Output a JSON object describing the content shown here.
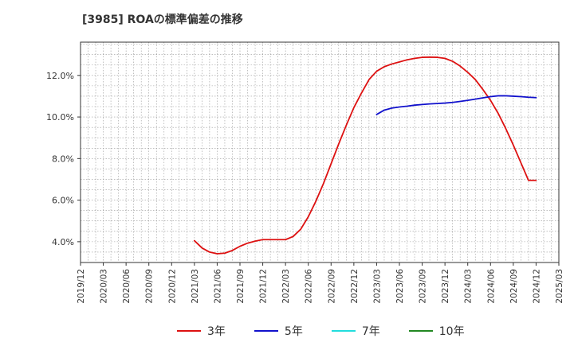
{
  "chart_data": {
    "type": "line",
    "title": "[3985]  ROAの標準偏差の推移",
    "xlabel": "",
    "ylabel": "",
    "ylim": [
      3.0,
      13.6
    ],
    "y_ticks": [
      4.0,
      6.0,
      8.0,
      10.0,
      12.0
    ],
    "y_tick_labels": [
      "4.0%",
      "6.0%",
      "8.0%",
      "10.0%",
      "12.0%"
    ],
    "x_range": [
      "2019/12",
      "2025/03"
    ],
    "x_tick_labels": [
      "2019/12",
      "2020/03",
      "2020/06",
      "2020/09",
      "2020/12",
      "2021/03",
      "2021/06",
      "2021/09",
      "2021/12",
      "2022/03",
      "2022/06",
      "2022/09",
      "2022/12",
      "2023/03",
      "2023/06",
      "2023/09",
      "2023/12",
      "2024/03",
      "2024/06",
      "2024/09",
      "2024/12",
      "2025/03"
    ],
    "grid": true,
    "legend_position": "bottom",
    "series": [
      {
        "name": "3年",
        "color": "#dd1111",
        "x": [
          "2021/03",
          "2021/04",
          "2021/05",
          "2021/06",
          "2021/07",
          "2021/08",
          "2021/09",
          "2021/10",
          "2021/11",
          "2021/12",
          "2022/01",
          "2022/02",
          "2022/03",
          "2022/04",
          "2022/05",
          "2022/06",
          "2022/07",
          "2022/08",
          "2022/09",
          "2022/10",
          "2022/11",
          "2022/12",
          "2023/01",
          "2023/02",
          "2023/03",
          "2023/04",
          "2023/05",
          "2023/06",
          "2023/07",
          "2023/08",
          "2023/09",
          "2023/10",
          "2023/11",
          "2023/12",
          "2024/01",
          "2024/02",
          "2024/03",
          "2024/04",
          "2024/05",
          "2024/06",
          "2024/07",
          "2024/08",
          "2024/09",
          "2024/10",
          "2024/11",
          "2024/12"
        ],
        "values": [
          4.05,
          3.7,
          3.5,
          3.42,
          3.45,
          3.58,
          3.78,
          3.93,
          4.03,
          4.1,
          4.1,
          4.1,
          4.1,
          4.25,
          4.6,
          5.2,
          5.95,
          6.8,
          7.75,
          8.7,
          9.6,
          10.45,
          11.15,
          11.8,
          12.2,
          12.42,
          12.55,
          12.65,
          12.75,
          12.82,
          12.87,
          12.88,
          12.87,
          12.82,
          12.68,
          12.45,
          12.15,
          11.8,
          11.32,
          10.8,
          10.18,
          9.45,
          8.65,
          7.8,
          6.95,
          6.95
        ]
      },
      {
        "name": "5年",
        "color": "#1111cc",
        "x": [
          "2023/03",
          "2023/04",
          "2023/05",
          "2023/06",
          "2023/07",
          "2023/08",
          "2023/09",
          "2023/10",
          "2023/11",
          "2023/12",
          "2024/01",
          "2024/02",
          "2024/03",
          "2024/04",
          "2024/05",
          "2024/06",
          "2024/07",
          "2024/08",
          "2024/09",
          "2024/10",
          "2024/11",
          "2024/12"
        ],
        "values": [
          10.12,
          10.33,
          10.43,
          10.48,
          10.52,
          10.57,
          10.6,
          10.63,
          10.65,
          10.67,
          10.7,
          10.75,
          10.8,
          10.86,
          10.92,
          10.98,
          11.02,
          11.02,
          11.0,
          10.98,
          10.95,
          10.93
        ]
      },
      {
        "name": "7年",
        "color": "#22dddd",
        "x": [],
        "values": []
      },
      {
        "name": "10年",
        "color": "#228822",
        "x": [],
        "values": []
      }
    ]
  }
}
